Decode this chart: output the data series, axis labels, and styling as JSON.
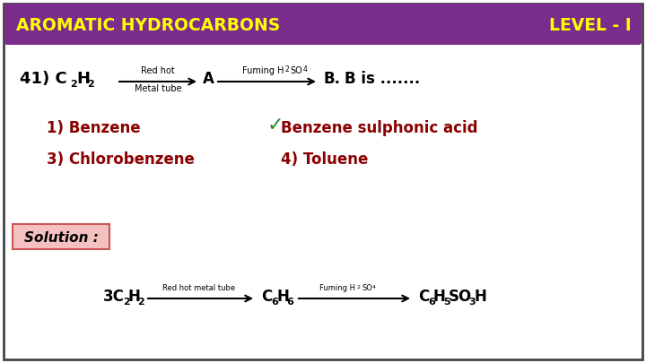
{
  "bg_color": "#ffffff",
  "border_color": "#444444",
  "header_bg": "#7b2d8b",
  "header_text_left": "AROMATIC HYDROCARBONS",
  "header_text_right": "LEVEL - I",
  "header_text_color": "#ffff00",
  "opt_color": "#8b0000",
  "check_color": "#228B22",
  "solution_text": "Solution :"
}
